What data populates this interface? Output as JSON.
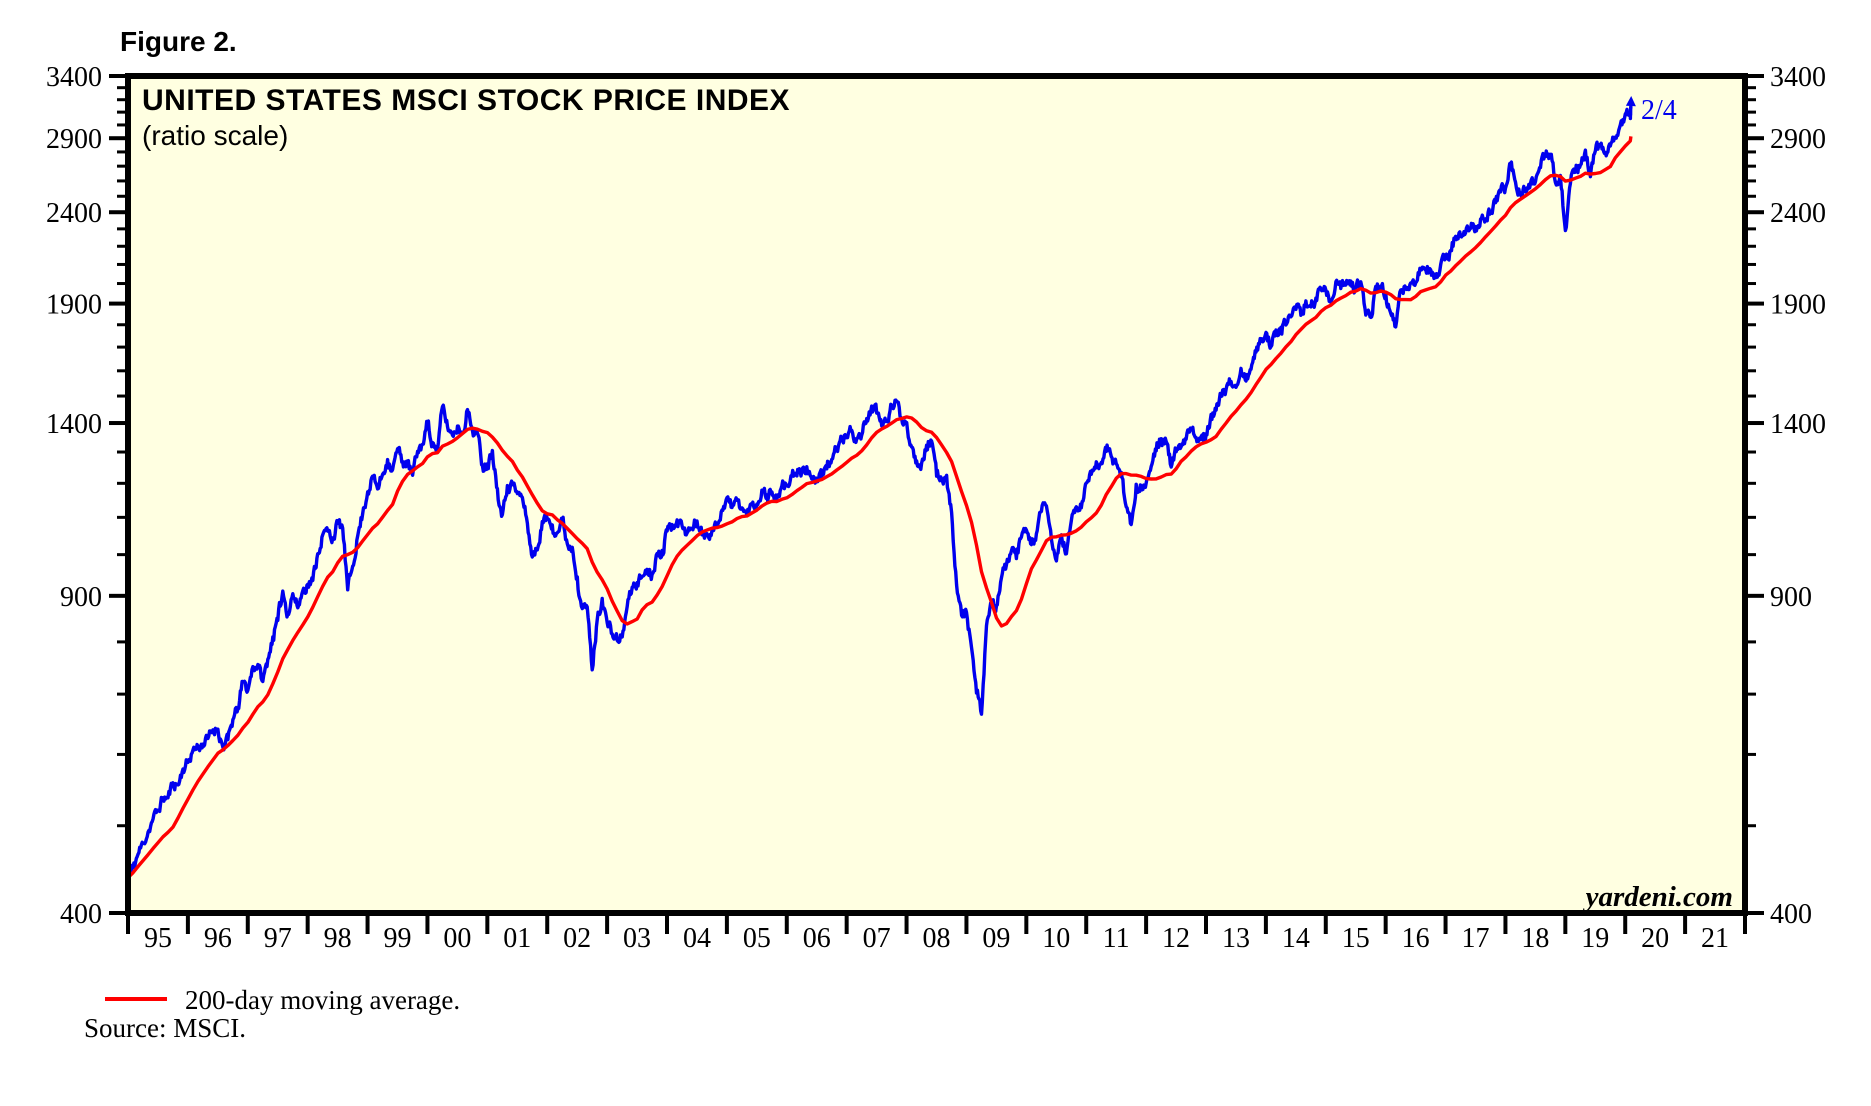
{
  "figure_label": "Figure 2.",
  "title": "UNITED STATES MSCI STOCK PRICE INDEX",
  "subtitle": "(ratio scale)",
  "watermark": "yardeni.com",
  "end_label": "2/4",
  "legend": {
    "ma_label": "200-day moving average.",
    "source": "Source: MSCI."
  },
  "colors": {
    "index_line": "#0000ee",
    "ma_line": "#ff0000",
    "plot_bg": "#ffffe1",
    "box": "#000000",
    "text": "#000000"
  },
  "chart_data": {
    "type": "line",
    "title": "UNITED STATES MSCI STOCK PRICE INDEX",
    "subtitle": "(ratio scale)",
    "y_axis": {
      "scale": "log",
      "min": 400,
      "max": 3400,
      "major_ticks": [
        400,
        900,
        1400,
        1900,
        2400,
        2900,
        3400
      ],
      "minor_tick_step": 100,
      "labels_both_sides": true
    },
    "x_axis": {
      "start_year": 1995,
      "end_year": 2022,
      "tick_labels": [
        "95",
        "96",
        "97",
        "98",
        "99",
        "00",
        "01",
        "02",
        "03",
        "04",
        "05",
        "06",
        "07",
        "08",
        "09",
        "10",
        "11",
        "12",
        "13",
        "14",
        "15",
        "16",
        "17",
        "18",
        "19",
        "20",
        "21"
      ]
    },
    "annotations": [
      {
        "text": "2/4",
        "meaning": "last data point Feb 4",
        "color": "#0000ee"
      }
    ],
    "series": [
      {
        "name": "United States MSCI stock price index",
        "color": "#0000ee",
        "frequency": "monthly",
        "start": "1994-12-31",
        "end": "2020-02-04",
        "values": [
          438,
          449,
          465,
          478,
          492,
          509,
          520,
          537,
          537,
          558,
          555,
          578,
          588,
          607,
          612,
          616,
          625,
          639,
          640,
          611,
          623,
          656,
          674,
          723,
          707,
          751,
          755,
          723,
          765,
          810,
          845,
          911,
          859,
          905,
          873,
          912,
          927,
          936,
          1002,
          1052,
          1062,
          1042,
          1083,
          1070,
          914,
          971,
          1049,
          1111,
          1174,
          1222,
          1183,
          1228,
          1275,
          1243,
          1311,
          1269,
          1261,
          1225,
          1302,
          1326,
          1403,
          1332,
          1305,
          1460,
          1387,
          1357,
          1389,
          1366,
          1449,
          1372,
          1365,
          1256,
          1261,
          1305,
          1184,
          1108,
          1193,
          1199,
          1169,
          1157,
          1083,
          994,
          1012,
          1088,
          1096,
          1079,
          1057,
          1096,
          1028,
          1019,
          945,
          871,
          875,
          745,
          846,
          894,
          840,
          817,
          803,
          810,
          876,
          920,
          931,
          946,
          963,
          951,
          1003,
          1011,
          1062,
          1080,
          1093,
          1076,
          1057,
          1070,
          1090,
          1052,
          1055,
          1064,
          1079,
          1121,
          1157,
          1128,
          1149,
          1127,
          1105,
          1138,
          1138,
          1179,
          1165,
          1174,
          1153,
          1193,
          1192,
          1222,
          1223,
          1237,
          1252,
          1213,
          1213,
          1219,
          1245,
          1276,
          1316,
          1338,
          1354,
          1374,
          1344,
          1357,
          1416,
          1462,
          1436,
          1390,
          1408,
          1458,
          1480,
          1414,
          1402,
          1317,
          1271,
          1263,
          1323,
          1337,
          1222,
          1210,
          1225,
          1114,
          925,
          856,
          863,
          789,
          702,
          665,
          834,
          878,
          878,
          943,
          975,
          1010,
          990,
          1046,
          1065,
          1026,
          1055,
          1117,
          1133,
          1040,
          984,
          1052,
          1002,
          1090,
          1130,
          1127,
          1201,
          1228,
          1268,
          1266,
          1302,
          1285,
          1261,
          1234,
          1130,
          1080,
          1197,
          1191,
          1201,
          1253,
          1304,
          1345,
          1335,
          1251,
          1301,
          1317,
          1343,
          1376,
          1349,
          1352,
          1362,
          1431,
          1447,
          1499,
          1526,
          1557,
          1534,
          1610,
          1559,
          1606,
          1678,
          1725,
          1765,
          1702,
          1776,
          1788,
          1799,
          1837,
          1872,
          1844,
          1913,
          1884,
          1927,
          1975,
          1966,
          1905,
          2010,
          1975,
          1992,
          2013,
          1970,
          2009,
          1845,
          1834,
          1986,
          1987,
          1952,
          1853,
          1790,
          1967,
          1972,
          2003,
          2004,
          2076,
          2073,
          2071,
          2030,
          2100,
          2138,
          2176,
          2257,
          2256,
          2277,
          2303,
          2314,
          2359,
          2360,
          2406,
          2459,
          2528,
          2553,
          2720,
          2592,
          2522,
          2529,
          2584,
          2596,
          2690,
          2771,
          2783,
          2590,
          2636,
          2290,
          2582,
          2659,
          2707,
          2813,
          2628,
          2809,
          2846,
          2795,
          2843,
          2901,
          3000,
          3085,
          3080,
          3149
        ]
      },
      {
        "name": "200-day moving average",
        "color": "#ff0000",
        "derived_from": 0,
        "window_points": 10
      }
    ],
    "render_hints": {
      "subpoints_per_month": 6,
      "noise_log_amp": 0.011,
      "noise_seed": 11,
      "grid": "off",
      "legend_position": "below-left"
    }
  }
}
